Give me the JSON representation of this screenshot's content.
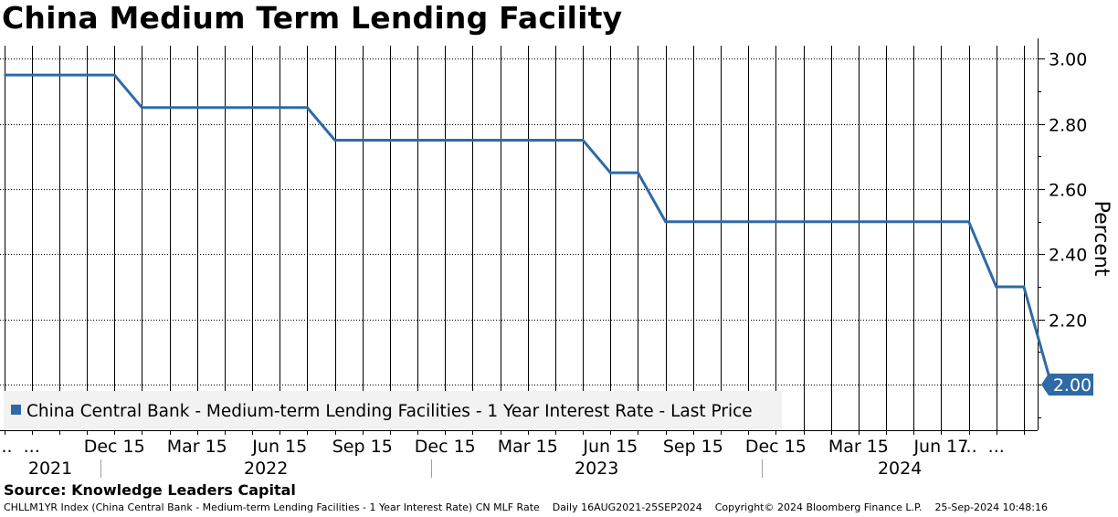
{
  "title": "China Medium Term Lending Facility",
  "source": "Source: Knowledge Leaders Capital",
  "footer": {
    "ticker_desc": "CHLLM1YR Index (China Central Bank - Medium-term Lending Facilities - 1 Year Interest Rate) CN MLF Rate",
    "period": "Daily 16AUG2021-25SEP2024",
    "copyright": "Copyright© 2024 Bloomberg Finance L.P.",
    "timestamp": "25-Sep-2024 10:48:16"
  },
  "colors": {
    "line": "#2e6aa6",
    "grid": "#000000",
    "legend_bg": "#f2f2f2"
  },
  "chart_data": {
    "type": "line",
    "title": "China Medium Term Lending Facility",
    "ylabel": "Percent",
    "ylim": [
      1.86,
      3.04
    ],
    "yticks": [
      3.0,
      2.8,
      2.6,
      2.4,
      2.2
    ],
    "ytick_labels": [
      "3.00",
      "2.80",
      "2.60",
      "2.40",
      "2.20"
    ],
    "xlim": [
      -0.15,
      37.5
    ],
    "month_ticks": [
      {
        "x": 0,
        "label": "..."
      },
      {
        "x": 1,
        "label": "..."
      },
      {
        "x": 4,
        "label": "Dec 15"
      },
      {
        "x": 7,
        "label": "Mar 15"
      },
      {
        "x": 10,
        "label": "Jun 15"
      },
      {
        "x": 13,
        "label": "Sep 15"
      },
      {
        "x": 16,
        "label": "Dec 15"
      },
      {
        "x": 19,
        "label": "Mar 15"
      },
      {
        "x": 22,
        "label": "Jun 15"
      },
      {
        "x": 25,
        "label": "Sep 15"
      },
      {
        "x": 28,
        "label": "Dec 15"
      },
      {
        "x": 31,
        "label": "Mar 15"
      },
      {
        "x": 34,
        "label": "Jun 17"
      },
      {
        "x": 35,
        "label": "..."
      },
      {
        "x": 36,
        "label": "..."
      }
    ],
    "year_labels": [
      {
        "label": "2021",
        "from": -0.15,
        "to": 3.5
      },
      {
        "label": "2022",
        "from": 3.5,
        "to": 15.5
      },
      {
        "label": "2023",
        "from": 15.5,
        "to": 27.5
      },
      {
        "label": "2024",
        "from": 27.5,
        "to": 37.5
      }
    ],
    "year_separators": [
      3.5,
      15.5,
      27.5
    ],
    "series": [
      {
        "name": "China Central Bank - Medium-term Lending Facilities - 1 Year Interest Rate - Last Price",
        "x": [
          0,
          4,
          5,
          11,
          12,
          21,
          22,
          23,
          24,
          35,
          36,
          37,
          38
        ],
        "values": [
          2.95,
          2.95,
          2.85,
          2.85,
          2.75,
          2.75,
          2.65,
          2.65,
          2.5,
          2.5,
          2.3,
          2.3,
          2.0
        ]
      }
    ],
    "last_value_label": "2.00",
    "legend": "China Central Bank - Medium-term Lending Facilities - 1 Year Interest Rate - Last Price",
    "legend_position": "bottom-left"
  }
}
